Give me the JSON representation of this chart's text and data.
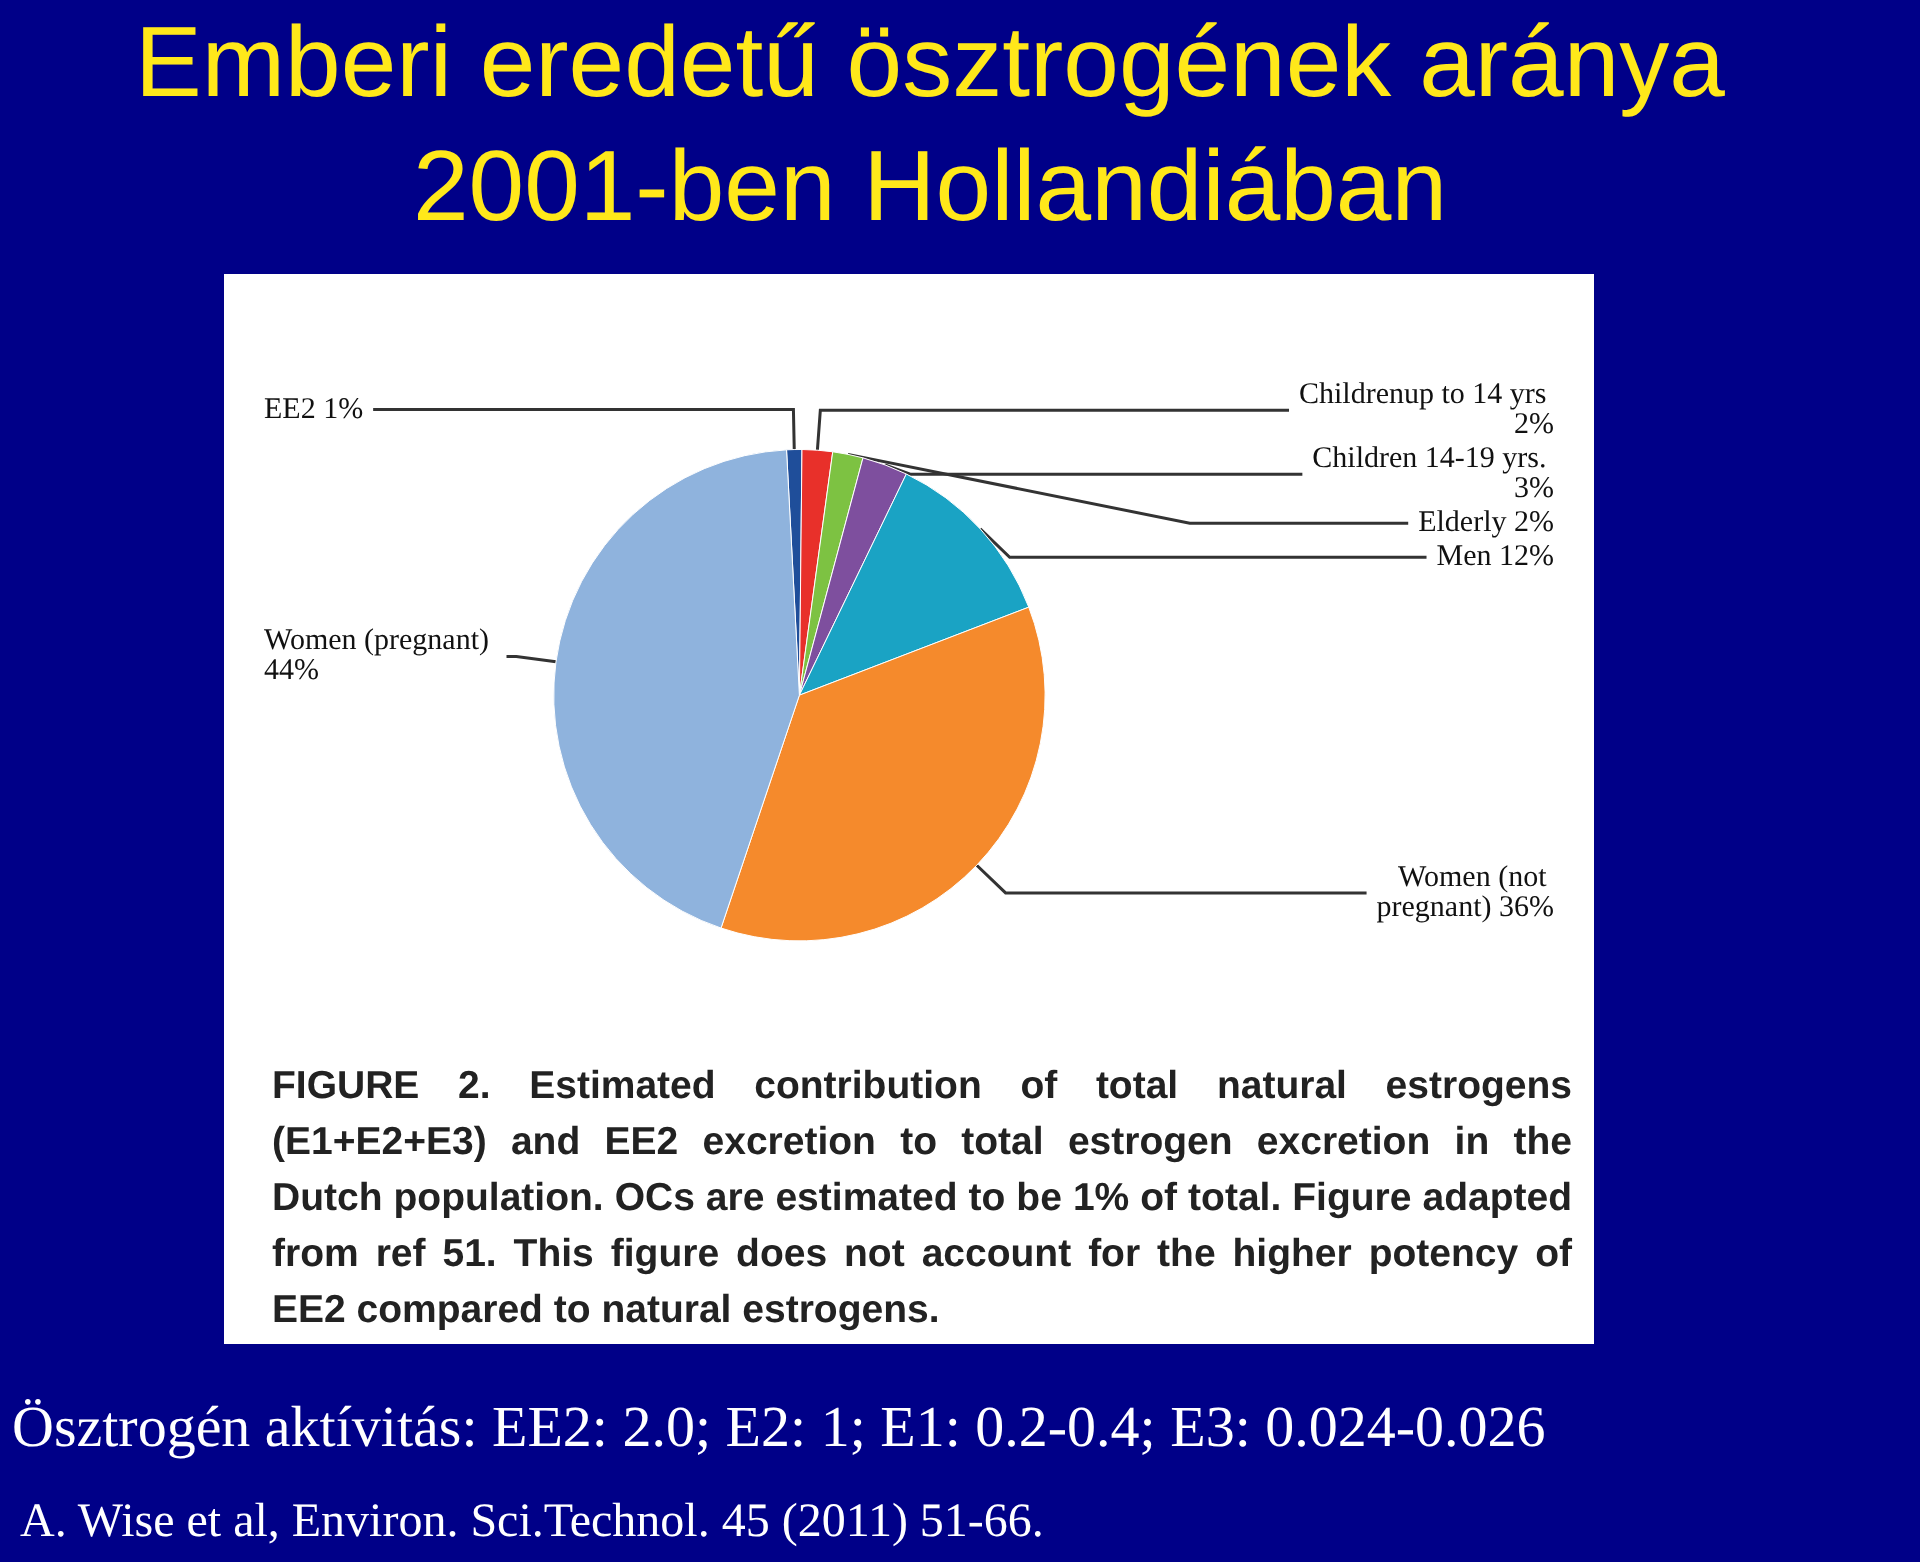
{
  "chart_data": {
    "type": "pie",
    "title": "Emberi eredetű ösztrogének aránya 2001-ben Hollandiában",
    "categories": [
      "EE2",
      "Childrenup to 14 yrs",
      "Elderly",
      "Children 14-19 yrs.",
      "Men",
      "Women (not pregnant)",
      "Women (pregnant)"
    ],
    "values": [
      1,
      2,
      2,
      3,
      12,
      36,
      44
    ],
    "value_labels": [
      "1%",
      "2%",
      "2%",
      "3%",
      "12%",
      "36%",
      "44%"
    ],
    "colors": [
      "#1f4e9a",
      "#e8302a",
      "#7dc242",
      "#7e4f9e",
      "#1aa3c4",
      "#f58a2c",
      "#8fb3dd"
    ],
    "legend": false,
    "annotations": [
      "FIGURE 2. Estimated contribution of total natural estrogens (E1+E2+E3) and EE2 excretion to total estrogen excretion in the Dutch population. OCs are estimated to be 1% of total. Figure adapted from ref 51. This figure does not account for the higher potency of EE2 compared to natural estrogens.",
      "Ösztrogén aktívitás: EE2: 2.0; E2: 1; E1: 0.2-0.4; E3: 0.024-0.026",
      "A. Wise et al, Environ. Sci.Technol. 45 (2011) 51-66."
    ]
  }
}
